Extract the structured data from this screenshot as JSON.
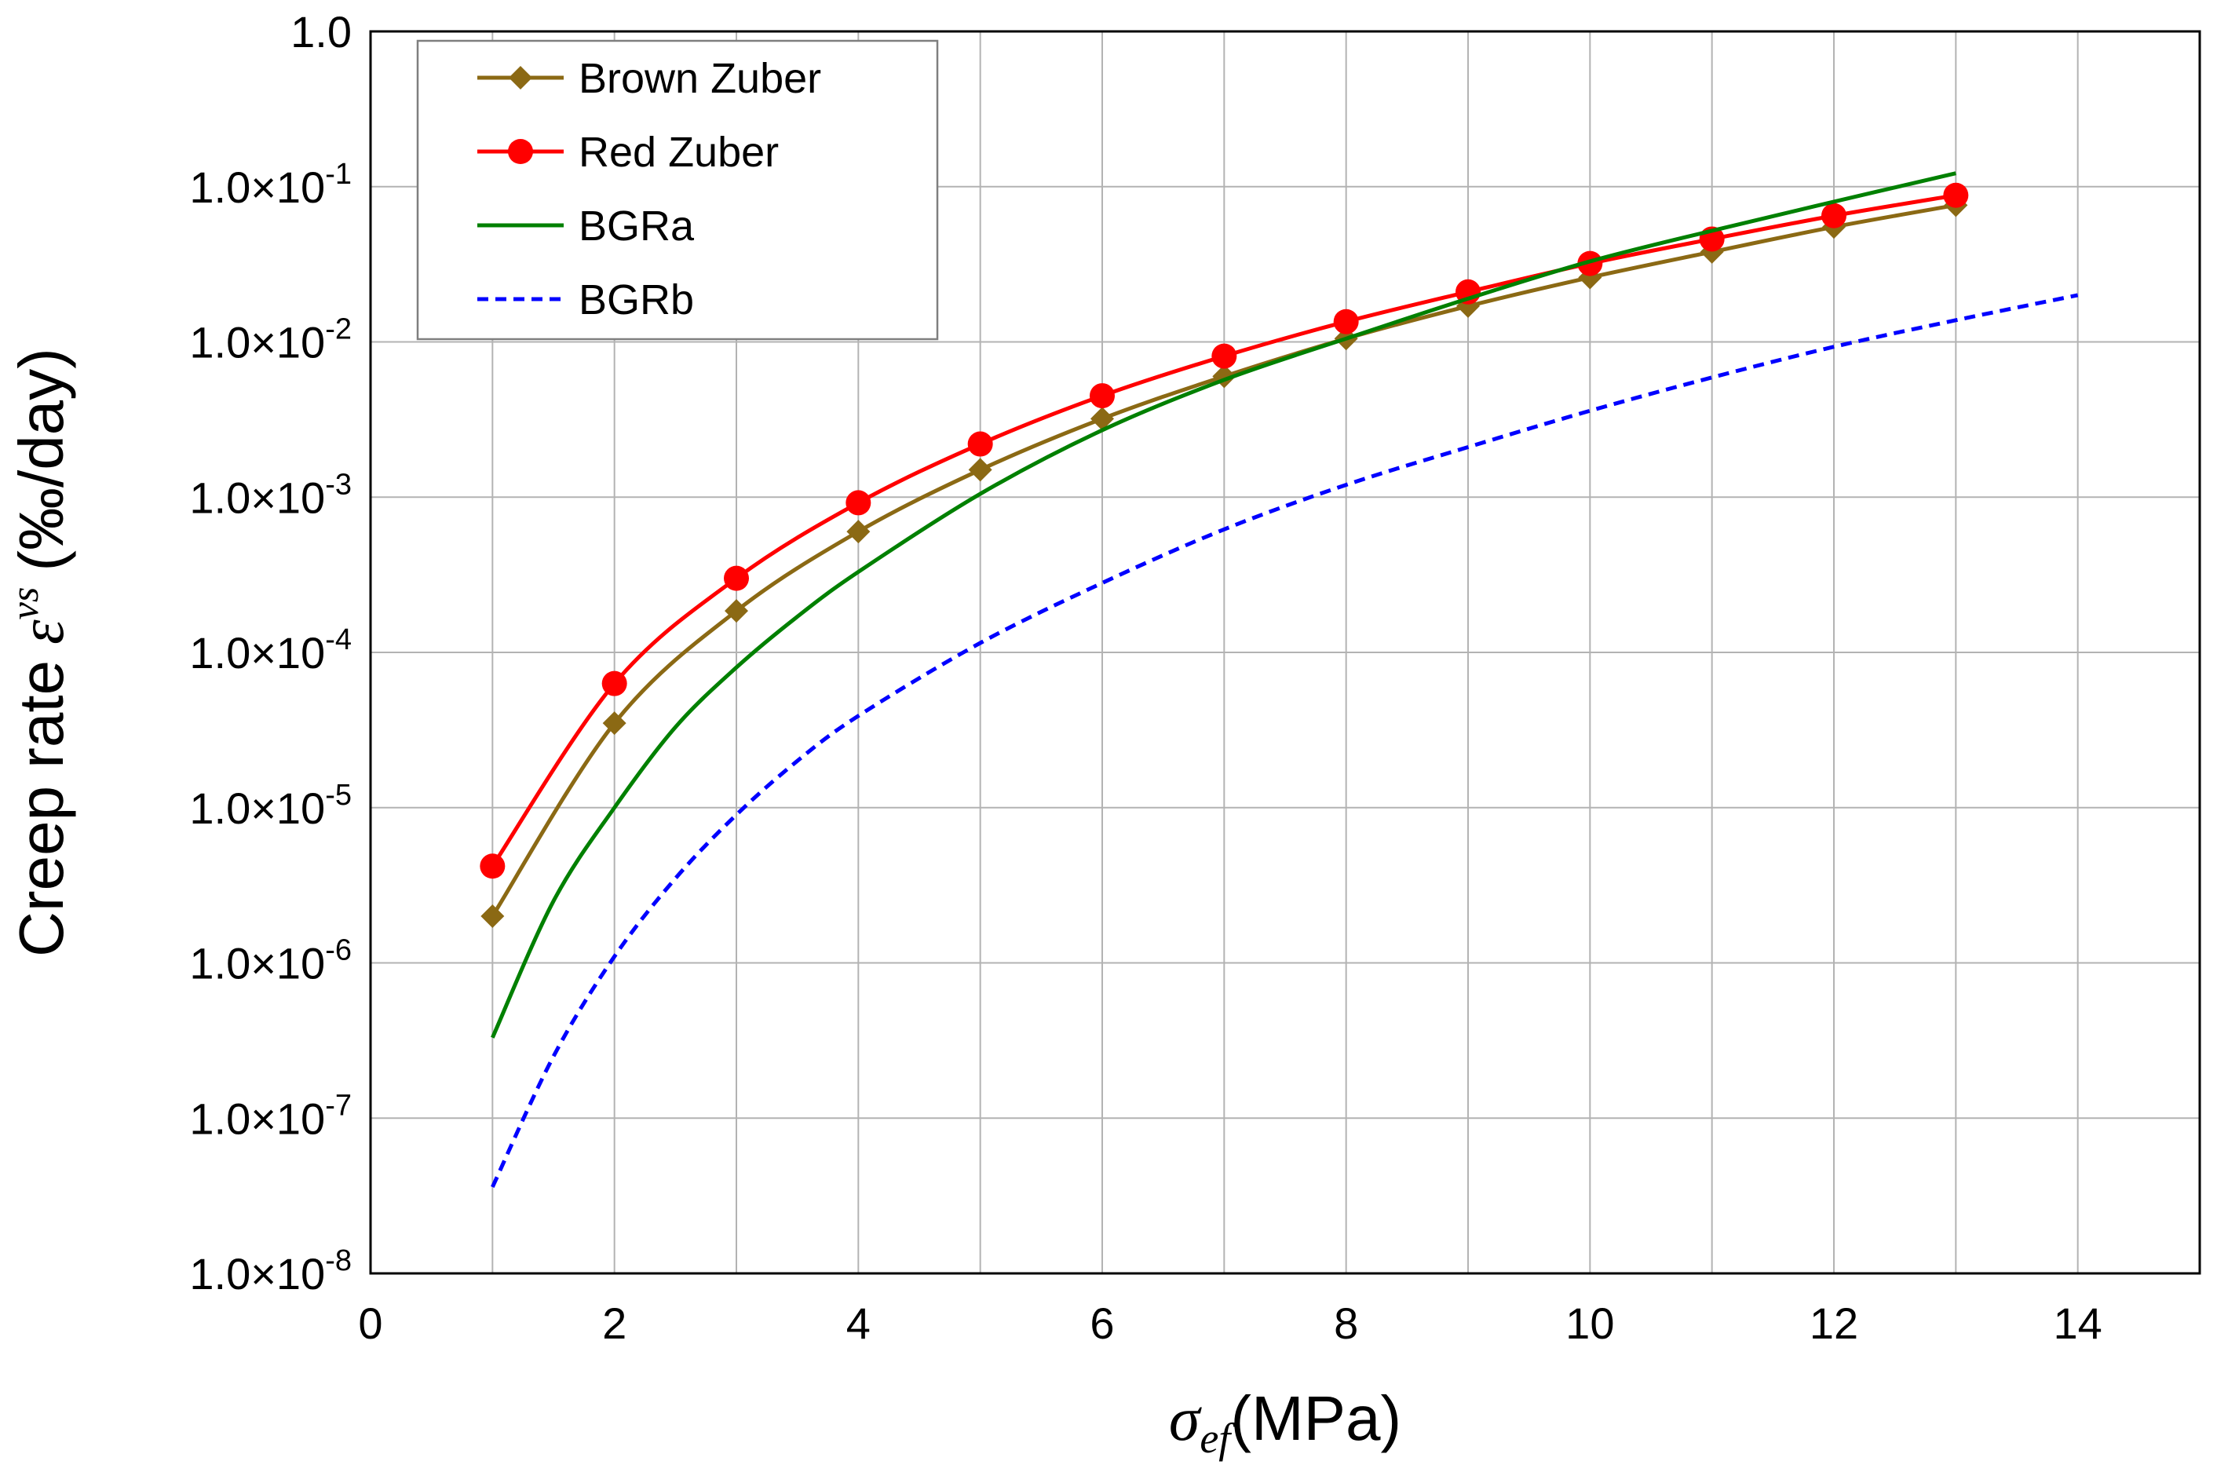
{
  "chart_data": {
    "type": "line",
    "title": "",
    "xlabel": {
      "symbol": "σ",
      "subscript": "ef",
      "unit": "(MPa)"
    },
    "ylabel": {
      "prefix": "Creep rate",
      "symbol": "ε",
      "superscript": "vs",
      "unit": "(‰/day)"
    },
    "xlim": [
      0,
      15
    ],
    "ylim_log10": [
      -8,
      0
    ],
    "y_scale": "log",
    "grid": true,
    "legend_position": "top-left",
    "x_ticks": [
      {
        "value": 0,
        "label": "0"
      },
      {
        "value": 2,
        "label": "2"
      },
      {
        "value": 4,
        "label": "4"
      },
      {
        "value": 6,
        "label": "6"
      },
      {
        "value": 8,
        "label": "8"
      },
      {
        "value": 10,
        "label": "10"
      },
      {
        "value": 12,
        "label": "12"
      },
      {
        "value": 14,
        "label": "14"
      }
    ],
    "y_ticks": [
      {
        "exp": 0,
        "mant": "1.0",
        "sup": ""
      },
      {
        "exp": -1,
        "mant": "1.0×10",
        "sup": "-1"
      },
      {
        "exp": -2,
        "mant": "1.0×10",
        "sup": "-2"
      },
      {
        "exp": -3,
        "mant": "1.0×10",
        "sup": "-3"
      },
      {
        "exp": -4,
        "mant": "1.0×10",
        "sup": "-4"
      },
      {
        "exp": -5,
        "mant": "1.0×10",
        "sup": "-5"
      },
      {
        "exp": -6,
        "mant": "1.0×10",
        "sup": "-6"
      },
      {
        "exp": -7,
        "mant": "1.0×10",
        "sup": "-7"
      },
      {
        "exp": -8,
        "mant": "1.0×10",
        "sup": "-8"
      }
    ],
    "series": [
      {
        "name": "Brown Zuber",
        "color": "#8B6914",
        "marker": "diamond",
        "dash": "",
        "x": [
          1,
          2,
          3,
          4,
          5,
          6,
          7,
          8,
          9,
          10,
          11,
          12,
          13
        ],
        "values": [
          2e-06,
          3.5e-05,
          0.000185,
          0.0006,
          0.0015,
          0.0032,
          0.006,
          0.0105,
          0.017,
          0.026,
          0.038,
          0.055,
          0.076
        ]
      },
      {
        "name": "Red Zuber",
        "color": "#FF0000",
        "marker": "circle",
        "dash": "",
        "x": [
          1,
          2,
          3,
          4,
          5,
          6,
          7,
          8,
          9,
          10,
          11,
          12,
          13
        ],
        "values": [
          4.2e-06,
          6.3e-05,
          0.0003,
          0.00092,
          0.0022,
          0.0045,
          0.0081,
          0.0135,
          0.021,
          0.032,
          0.046,
          0.065,
          0.088
        ]
      },
      {
        "name": "BGRa",
        "color": "#008000",
        "marker": "none",
        "dash": "",
        "x": [
          1,
          1.5,
          2,
          2.5,
          3,
          3.5,
          4,
          5,
          6,
          7,
          8,
          9,
          10,
          11,
          12,
          13
        ],
        "values": [
          3.3e-07,
          2.5e-06,
          1e-05,
          3.3e-05,
          8e-05,
          0.00017,
          0.00033,
          0.00105,
          0.0027,
          0.0057,
          0.0105,
          0.019,
          0.033,
          0.052,
          0.08,
          0.122
        ]
      },
      {
        "name": "BGRb",
        "color": "#0000FF",
        "marker": "none",
        "dash": "14,9",
        "x": [
          1,
          1.5,
          2,
          2.5,
          3,
          3.5,
          4,
          5,
          6,
          7,
          8,
          9,
          10,
          11,
          12,
          13,
          14
        ],
        "values": [
          3.6e-08,
          2.5e-07,
          1.1e-06,
          3.5e-06,
          9e-06,
          2e-05,
          3.9e-05,
          0.000115,
          0.00028,
          0.00062,
          0.0012,
          0.0021,
          0.0036,
          0.0059,
          0.0093,
          0.0138,
          0.02
        ]
      }
    ]
  }
}
